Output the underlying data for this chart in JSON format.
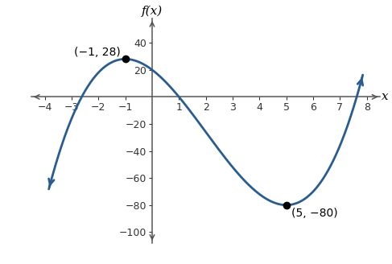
{
  "xlim": [
    -4.5,
    8.5
  ],
  "ylim": [
    -108,
    58
  ],
  "xticks": [
    -4,
    -3,
    -2,
    -1,
    1,
    2,
    3,
    4,
    5,
    6,
    7,
    8
  ],
  "yticks": [
    -100,
    -80,
    -60,
    -40,
    -20,
    20,
    40
  ],
  "local_max": [
    -1,
    28
  ],
  "local_min": [
    5,
    -80
  ],
  "curve_color": "#2a5d8f",
  "curve_linewidth": 2.0,
  "dot_color": "black",
  "dot_size": 6,
  "annotation_max": "(−1, 28)",
  "annotation_min": "(5, −80)",
  "x_plot_start": -3.85,
  "x_plot_end": 7.85,
  "background_color": "#ffffff",
  "axis_color": "#555555",
  "tick_color": "#333333",
  "tick_fontsize": 9,
  "label_fontsize": 11
}
